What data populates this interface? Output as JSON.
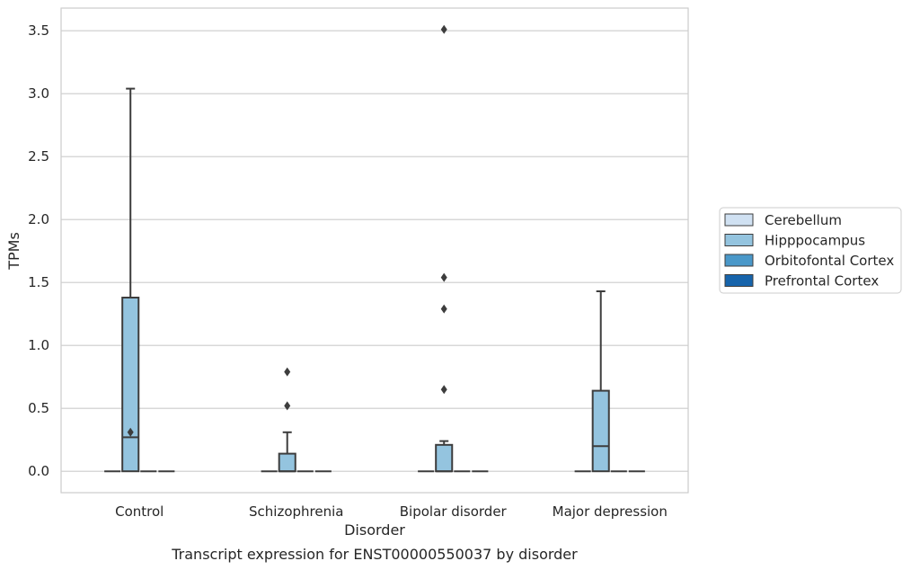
{
  "chart_data": {
    "type": "box",
    "xlabel": "Disorder",
    "ylabel": "TPMs",
    "caption": "Transcript expression for ENST00000550037 by disorder",
    "ylim": [
      -0.17,
      3.68
    ],
    "yticks": [
      "0.0",
      "0.5",
      "1.0",
      "1.5",
      "2.0",
      "2.5",
      "3.0",
      "3.5"
    ],
    "grid": "horizontal",
    "legend_position": "right",
    "categories": [
      "Control",
      "Schizophrenia",
      "Bipolar disorder",
      "Major depression"
    ],
    "series": [
      {
        "name": "Cerebellum",
        "color": "#d0e1f2",
        "boxes": [
          {
            "min": 0,
            "q1": 0,
            "median": 0,
            "q3": 0,
            "max": 0,
            "outliers": []
          },
          {
            "min": 0,
            "q1": 0,
            "median": 0,
            "q3": 0,
            "max": 0,
            "outliers": []
          },
          {
            "min": 0,
            "q1": 0,
            "median": 0,
            "q3": 0,
            "max": 0,
            "outliers": []
          },
          {
            "min": 0,
            "q1": 0,
            "median": 0,
            "q3": 0,
            "max": 0,
            "outliers": []
          }
        ]
      },
      {
        "name": "Hipppocampus",
        "color": "#94c4df",
        "boxes": [
          {
            "min": 0,
            "q1": 0,
            "median": 0.27,
            "q3": 1.38,
            "max": 3.04,
            "outliers": [
              0.31
            ]
          },
          {
            "min": 0,
            "q1": 0,
            "median": 0,
            "q3": 0.14,
            "max": 0.31,
            "outliers": [
              0.52,
              0.79
            ]
          },
          {
            "min": 0,
            "q1": 0,
            "median": 0,
            "q3": 0.21,
            "max": 0.24,
            "outliers": [
              0.65,
              1.29,
              1.54,
              3.51
            ]
          },
          {
            "min": 0,
            "q1": 0,
            "median": 0.2,
            "q3": 0.64,
            "max": 1.43,
            "outliers": []
          }
        ]
      },
      {
        "name": "Orbitofontal Cortex",
        "color": "#4a98c9",
        "boxes": [
          {
            "min": 0,
            "q1": 0,
            "median": 0,
            "q3": 0,
            "max": 0,
            "outliers": []
          },
          {
            "min": 0,
            "q1": 0,
            "median": 0,
            "q3": 0,
            "max": 0,
            "outliers": []
          },
          {
            "min": 0,
            "q1": 0,
            "median": 0,
            "q3": 0,
            "max": 0,
            "outliers": []
          },
          {
            "min": 0,
            "q1": 0,
            "median": 0,
            "q3": 0,
            "max": 0,
            "outliers": []
          }
        ]
      },
      {
        "name": "Prefrontal Cortex",
        "color": "#1764ab",
        "boxes": [
          {
            "min": 0,
            "q1": 0,
            "median": 0,
            "q3": 0,
            "max": 0,
            "outliers": []
          },
          {
            "min": 0,
            "q1": 0,
            "median": 0,
            "q3": 0,
            "max": 0,
            "outliers": []
          },
          {
            "min": 0,
            "q1": 0,
            "median": 0,
            "q3": 0,
            "max": 0,
            "outliers": []
          },
          {
            "min": 0,
            "q1": 0,
            "median": 0,
            "q3": 0,
            "max": 0,
            "outliers": []
          }
        ]
      }
    ],
    "colors": {
      "grid": "#cccccc",
      "frame": "#cccccc",
      "line": "#3d3d3d",
      "outlier": "#3d3d3d"
    }
  }
}
